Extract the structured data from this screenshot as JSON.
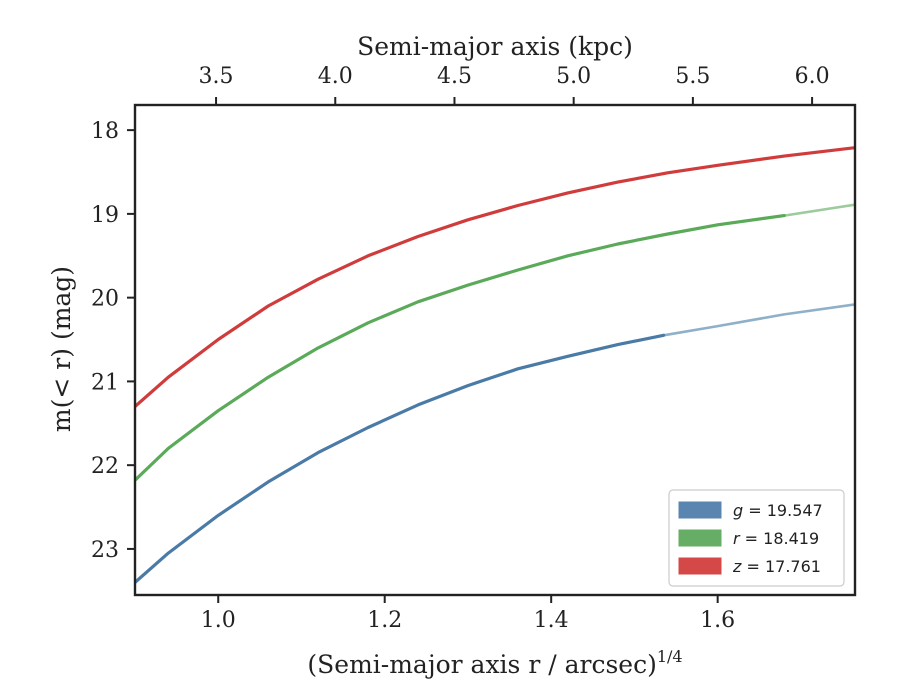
{
  "chart_data": {
    "type": "line",
    "title": "",
    "top_xlabel": "Semi-major axis (kpc)",
    "top_xticks": [
      "3.5",
      "4.0",
      "4.5",
      "5.0",
      "5.5",
      "6.0"
    ],
    "top_xtick_values": [
      3.5,
      4.0,
      4.5,
      5.0,
      5.5,
      6.0
    ],
    "top_xlim": [
      3.16,
      6.18
    ],
    "xlabel_text": "(Semi-major axis r / arcsec)",
    "xlabel_sup": "1/4",
    "xticks": [
      "1.0",
      "1.2",
      "1.4",
      "1.6"
    ],
    "xtick_values": [
      1.0,
      1.2,
      1.4,
      1.6
    ],
    "xlim": [
      0.9,
      1.765
    ],
    "ylabel": "m(< r) (mag)",
    "yticks": [
      "18",
      "19",
      "20",
      "21",
      "22",
      "23"
    ],
    "ytick_values": [
      18,
      19,
      20,
      21,
      22,
      23
    ],
    "ylim": [
      23.55,
      17.7
    ],
    "y_inverted": true,
    "grid": false,
    "legend_position": "lower-right",
    "series": [
      {
        "name": "g = 19.547",
        "color": "#4a7ba7",
        "faded_color": "#8eb0c8",
        "solid_until_x": 1.535,
        "x": [
          0.9,
          0.94,
          1.0,
          1.06,
          1.12,
          1.18,
          1.24,
          1.3,
          1.36,
          1.42,
          1.48,
          1.535,
          1.6,
          1.68,
          1.765
        ],
        "y": [
          23.4,
          23.05,
          22.6,
          22.2,
          21.85,
          21.55,
          21.28,
          21.05,
          20.85,
          20.7,
          20.56,
          20.45,
          20.34,
          20.2,
          20.08
        ]
      },
      {
        "name": "r = 18.419",
        "color": "#5aaa5a",
        "faded_color": "#9dcb9d",
        "solid_until_x": 1.68,
        "x": [
          0.9,
          0.94,
          1.0,
          1.06,
          1.12,
          1.18,
          1.24,
          1.3,
          1.36,
          1.42,
          1.48,
          1.54,
          1.6,
          1.68,
          1.765
        ],
        "y": [
          22.18,
          21.8,
          21.35,
          20.95,
          20.6,
          20.3,
          20.05,
          19.85,
          19.67,
          19.5,
          19.36,
          19.24,
          19.13,
          19.02,
          18.89
        ]
      },
      {
        "name": "z = 17.761",
        "color": "#d03c3c",
        "faded_color": "#e08a8a",
        "solid_until_x": 1.765,
        "x": [
          0.9,
          0.94,
          1.0,
          1.06,
          1.12,
          1.18,
          1.24,
          1.3,
          1.36,
          1.42,
          1.48,
          1.54,
          1.6,
          1.68,
          1.765
        ],
        "y": [
          21.3,
          20.95,
          20.5,
          20.1,
          19.78,
          19.5,
          19.27,
          19.07,
          18.9,
          18.75,
          18.62,
          18.51,
          18.42,
          18.31,
          18.21
        ]
      }
    ],
    "legend": [
      {
        "label_var": "g",
        "label_value": "= 19.547",
        "color": "#5a85b0"
      },
      {
        "label_var": "r",
        "label_value": "= 18.419",
        "color": "#66ad66"
      },
      {
        "label_var": "z",
        "label_value": "= 17.761",
        "color": "#d44848"
      }
    ]
  }
}
